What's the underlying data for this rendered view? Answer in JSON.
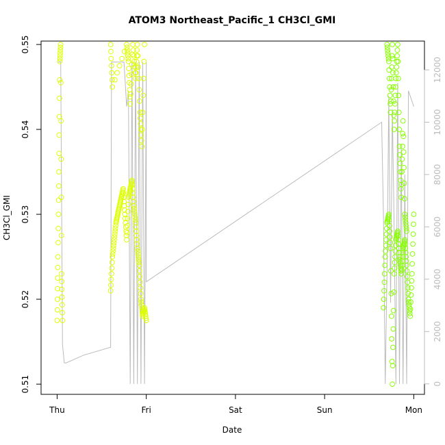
{
  "chart_data": {
    "type": "scatter",
    "title": "ATOM3 Northeast_Pacific_1 CH3Cl_GMI",
    "xlabel": "Date",
    "ylabel": "CH3Cl_GMI",
    "x_ticks": [
      "Thu",
      "Fri",
      "Sat",
      "Sun",
      "Mon"
    ],
    "x_unit": "days from Thu 00:00",
    "xlim": [
      -0.18,
      4.12
    ],
    "ylim": [
      0.5088,
      0.5504
    ],
    "y_ticks": [
      "0.51",
      "0.52",
      "0.53",
      "0.54",
      "0.55"
    ],
    "y2_ticks": [
      "0",
      "2000",
      "4000",
      "6000",
      "8000",
      "10000",
      "12000"
    ],
    "y2_lim": [
      -400,
      13100
    ],
    "colors": {
      "yellow": "#ddff00",
      "green": "#88ff00",
      "altitude_line": "#bbbbbb",
      "frame": "#000000"
    },
    "series": [
      {
        "color": "yellow",
        "segments": [
          {
            "x": [
              0.0,
              0.01,
              0.02,
              0.03,
              0.04,
              0.05,
              0.06
            ],
            "y": [
              0.5175,
              0.525,
              0.535,
              0.548,
              0.55,
              0.523,
              0.5175
            ]
          },
          {
            "x": [
              0.6,
              0.62,
              0.64,
              0.66,
              0.68,
              0.7,
              0.72,
              0.74,
              0.76,
              0.78,
              0.8,
              0.82,
              0.84,
              0.86,
              0.88,
              0.9,
              0.92,
              0.94,
              0.96,
              0.98,
              1.0
            ],
            "y": [
              0.521,
              0.525,
              0.527,
              0.529,
              0.53,
              0.531,
              0.532,
              0.533,
              0.53,
              0.527,
              0.532,
              0.533,
              0.534,
              0.531,
              0.529,
              0.526,
              0.524,
              0.52,
              0.518,
              0.519,
              0.5175
            ]
          },
          {
            "x": [
              0.6,
              0.62,
              0.78,
              0.8,
              0.82,
              0.85,
              0.88,
              0.9,
              0.93,
              0.95,
              0.98
            ],
            "y": [
              0.55,
              0.545,
              0.55,
              0.548,
              0.543,
              0.55,
              0.546,
              0.55,
              0.542,
              0.538,
              0.55
            ]
          }
        ]
      },
      {
        "color": "green",
        "segments": [
          {
            "x": [
              3.66,
              3.68,
              3.7,
              3.72,
              3.74,
              3.76,
              3.78,
              3.8,
              3.82,
              3.84,
              3.86,
              3.88,
              3.9,
              3.92,
              3.94,
              3.96,
              3.98,
              4.0
            ],
            "y": [
              0.519,
              0.525,
              0.529,
              0.53,
              0.526,
              0.51,
              0.523,
              0.527,
              0.528,
              0.525,
              0.523,
              0.526,
              0.527,
              0.524,
              0.52,
              0.518,
              0.523,
              0.53
            ]
          },
          {
            "x": [
              3.7,
              3.72,
              3.74,
              3.76,
              3.78,
              3.8,
              3.82,
              3.84,
              3.86,
              3.88,
              3.9,
              3.92
            ],
            "y": [
              0.55,
              0.548,
              0.542,
              0.55,
              0.54,
              0.546,
              0.55,
              0.538,
              0.532,
              0.541,
              0.53,
              0.528
            ]
          }
        ]
      }
    ],
    "altitude": {
      "x": [
        0.0,
        0.02,
        0.04,
        0.06,
        0.08,
        0.1,
        0.3,
        0.6,
        0.61,
        0.62,
        0.7,
        0.75,
        0.78,
        0.8,
        0.82,
        0.84,
        0.86,
        0.88,
        0.9,
        0.92,
        0.94,
        0.96,
        0.98,
        1.0,
        1.0,
        3.64,
        3.66,
        3.68,
        3.7,
        3.72,
        3.74,
        3.76,
        3.78,
        3.8,
        3.82,
        3.84,
        3.86,
        3.88,
        3.9,
        3.92,
        3.94,
        3.96,
        3.98,
        4.0
      ],
      "y": [
        12300,
        12300,
        12300,
        1500,
        800,
        800,
        1100,
        1400,
        12300,
        12300,
        12300,
        12300,
        10600,
        11200,
        0,
        12300,
        0,
        12300,
        0,
        12300,
        0,
        12300,
        0,
        12300,
        3900,
        10000,
        6400,
        0,
        4200,
        11000,
        3100,
        10500,
        6000,
        0,
        11500,
        0,
        9000,
        0,
        8000,
        0,
        11200,
        11000,
        10800,
        10600
      ]
    }
  }
}
